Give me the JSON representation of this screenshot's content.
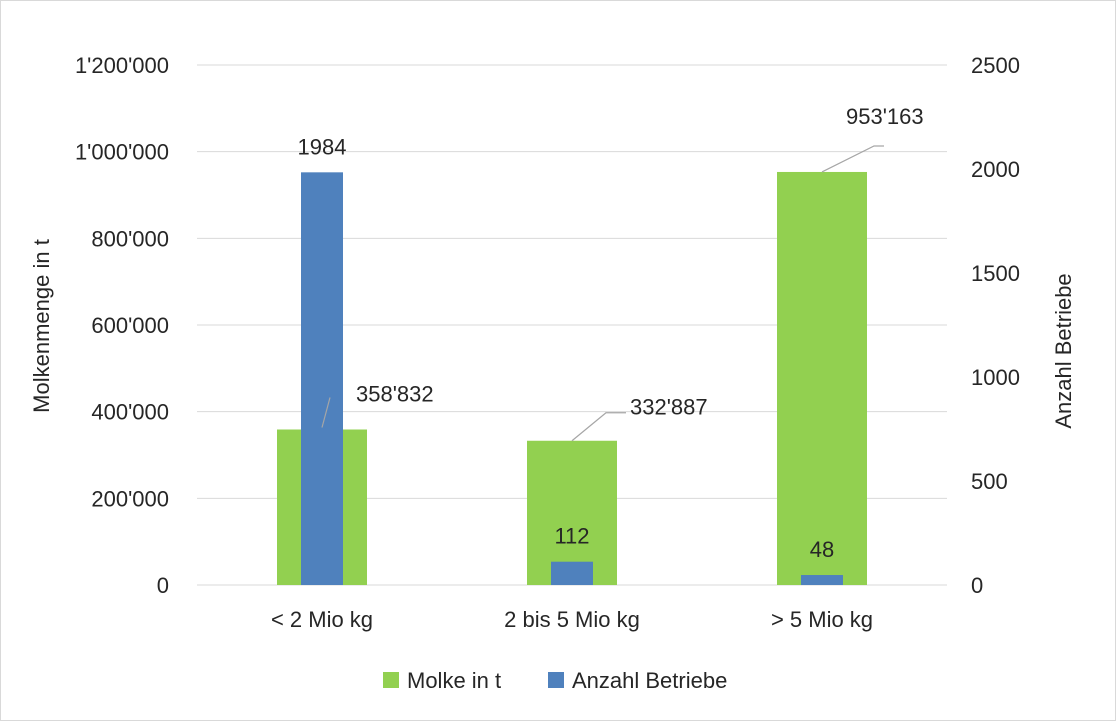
{
  "chart_data": {
    "type": "bar",
    "categories": [
      "< 2 Mio kg",
      "2 bis 5 Mio kg",
      "> 5 Mio kg"
    ],
    "series": [
      {
        "name": "Molke in t",
        "axis": "left",
        "color": "#92d050",
        "values": [
          358832,
          332887,
          953163
        ],
        "labels": [
          "358'832",
          "332'887",
          "953'163"
        ]
      },
      {
        "name": "Anzahl Betriebe",
        "axis": "right",
        "color": "#4f81bd",
        "values": [
          1984,
          112,
          48
        ],
        "labels": [
          "1984",
          "112",
          "48"
        ]
      }
    ],
    "y_left": {
      "label": "Molkenmenge in t",
      "range": [
        0,
        1200000
      ],
      "ticks": [
        0,
        200000,
        400000,
        600000,
        800000,
        1000000,
        1200000
      ],
      "tick_labels": [
        "0",
        "200'000",
        "400'000",
        "600'000",
        "800'000",
        "1'000'000",
        "1'200'000"
      ]
    },
    "y_right": {
      "label": "Anzahl Betriebe",
      "range": [
        0,
        2500
      ],
      "ticks": [
        0,
        500,
        1000,
        1500,
        2000,
        2500
      ],
      "tick_labels": [
        "0",
        "500",
        "1000",
        "1500",
        "2000",
        "2500"
      ]
    },
    "grid": true,
    "gridline_color": "#d9d9d9",
    "legend_position": "bottom"
  }
}
